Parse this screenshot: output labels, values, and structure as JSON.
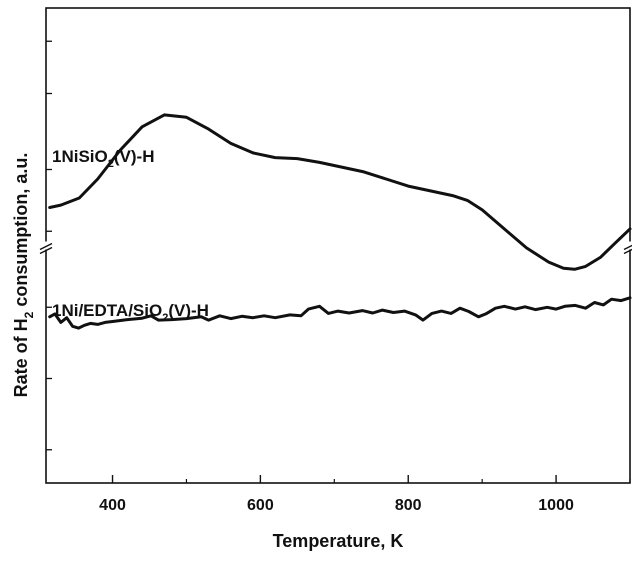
{
  "chart_data": {
    "type": "line",
    "title": "",
    "xlabel": "Temperature, K",
    "ylabel_parts": {
      "pre": "Rate of H",
      "sub": "2",
      "post": " consumption, a.u."
    },
    "xlim": [
      310,
      1100
    ],
    "x_ticks": [
      400,
      600,
      800,
      1000
    ],
    "y_ticks_shown": "no numeric labels (arbitrary units)",
    "axis_break": "broken y-axis between the two curves",
    "grid": false,
    "legend": "none (curves labeled inline)",
    "series": [
      {
        "name_parts": {
          "pre": "1NiSiO",
          "sub": "2",
          "post": "(V)-H"
        },
        "points": [
          [
            315,
            0.58
          ],
          [
            330,
            0.585
          ],
          [
            355,
            0.6
          ],
          [
            380,
            0.64
          ],
          [
            410,
            0.7
          ],
          [
            440,
            0.75
          ],
          [
            470,
            0.775
          ],
          [
            500,
            0.77
          ],
          [
            530,
            0.745
          ],
          [
            560,
            0.715
          ],
          [
            590,
            0.695
          ],
          [
            620,
            0.685
          ],
          [
            650,
            0.683
          ],
          [
            680,
            0.675
          ],
          [
            710,
            0.665
          ],
          [
            740,
            0.655
          ],
          [
            770,
            0.64
          ],
          [
            800,
            0.625
          ],
          [
            830,
            0.615
          ],
          [
            860,
            0.605
          ],
          [
            880,
            0.595
          ],
          [
            900,
            0.575
          ],
          [
            930,
            0.535
          ],
          [
            960,
            0.495
          ],
          [
            990,
            0.465
          ],
          [
            1010,
            0.452
          ],
          [
            1025,
            0.45
          ],
          [
            1040,
            0.456
          ],
          [
            1060,
            0.475
          ],
          [
            1080,
            0.505
          ],
          [
            1100,
            0.535
          ]
        ]
      },
      {
        "name_parts": {
          "pre": "1Ni/EDTA/SiO",
          "sub": "2",
          "post": "(V)-H"
        },
        "points": [
          [
            315,
            0.35
          ],
          [
            322,
            0.356
          ],
          [
            330,
            0.338
          ],
          [
            338,
            0.348
          ],
          [
            346,
            0.33
          ],
          [
            354,
            0.326
          ],
          [
            362,
            0.332
          ],
          [
            370,
            0.336
          ],
          [
            380,
            0.334
          ],
          [
            390,
            0.338
          ],
          [
            400,
            0.34
          ],
          [
            420,
            0.344
          ],
          [
            440,
            0.347
          ],
          [
            452,
            0.352
          ],
          [
            462,
            0.343
          ],
          [
            480,
            0.344
          ],
          [
            500,
            0.346
          ],
          [
            520,
            0.35
          ],
          [
            530,
            0.343
          ],
          [
            545,
            0.352
          ],
          [
            560,
            0.346
          ],
          [
            575,
            0.351
          ],
          [
            590,
            0.348
          ],
          [
            605,
            0.352
          ],
          [
            620,
            0.348
          ],
          [
            640,
            0.354
          ],
          [
            655,
            0.352
          ],
          [
            665,
            0.366
          ],
          [
            680,
            0.372
          ],
          [
            692,
            0.357
          ],
          [
            705,
            0.362
          ],
          [
            720,
            0.358
          ],
          [
            738,
            0.363
          ],
          [
            752,
            0.358
          ],
          [
            765,
            0.364
          ],
          [
            780,
            0.359
          ],
          [
            795,
            0.362
          ],
          [
            810,
            0.354
          ],
          [
            820,
            0.343
          ],
          [
            832,
            0.357
          ],
          [
            845,
            0.362
          ],
          [
            858,
            0.357
          ],
          [
            870,
            0.368
          ],
          [
            882,
            0.361
          ],
          [
            895,
            0.35
          ],
          [
            905,
            0.356
          ],
          [
            918,
            0.368
          ],
          [
            930,
            0.372
          ],
          [
            945,
            0.366
          ],
          [
            958,
            0.371
          ],
          [
            972,
            0.365
          ],
          [
            988,
            0.37
          ],
          [
            1000,
            0.366
          ],
          [
            1012,
            0.372
          ],
          [
            1026,
            0.374
          ],
          [
            1040,
            0.368
          ],
          [
            1052,
            0.38
          ],
          [
            1064,
            0.375
          ],
          [
            1075,
            0.387
          ],
          [
            1088,
            0.384
          ],
          [
            1100,
            0.39
          ]
        ]
      }
    ]
  }
}
